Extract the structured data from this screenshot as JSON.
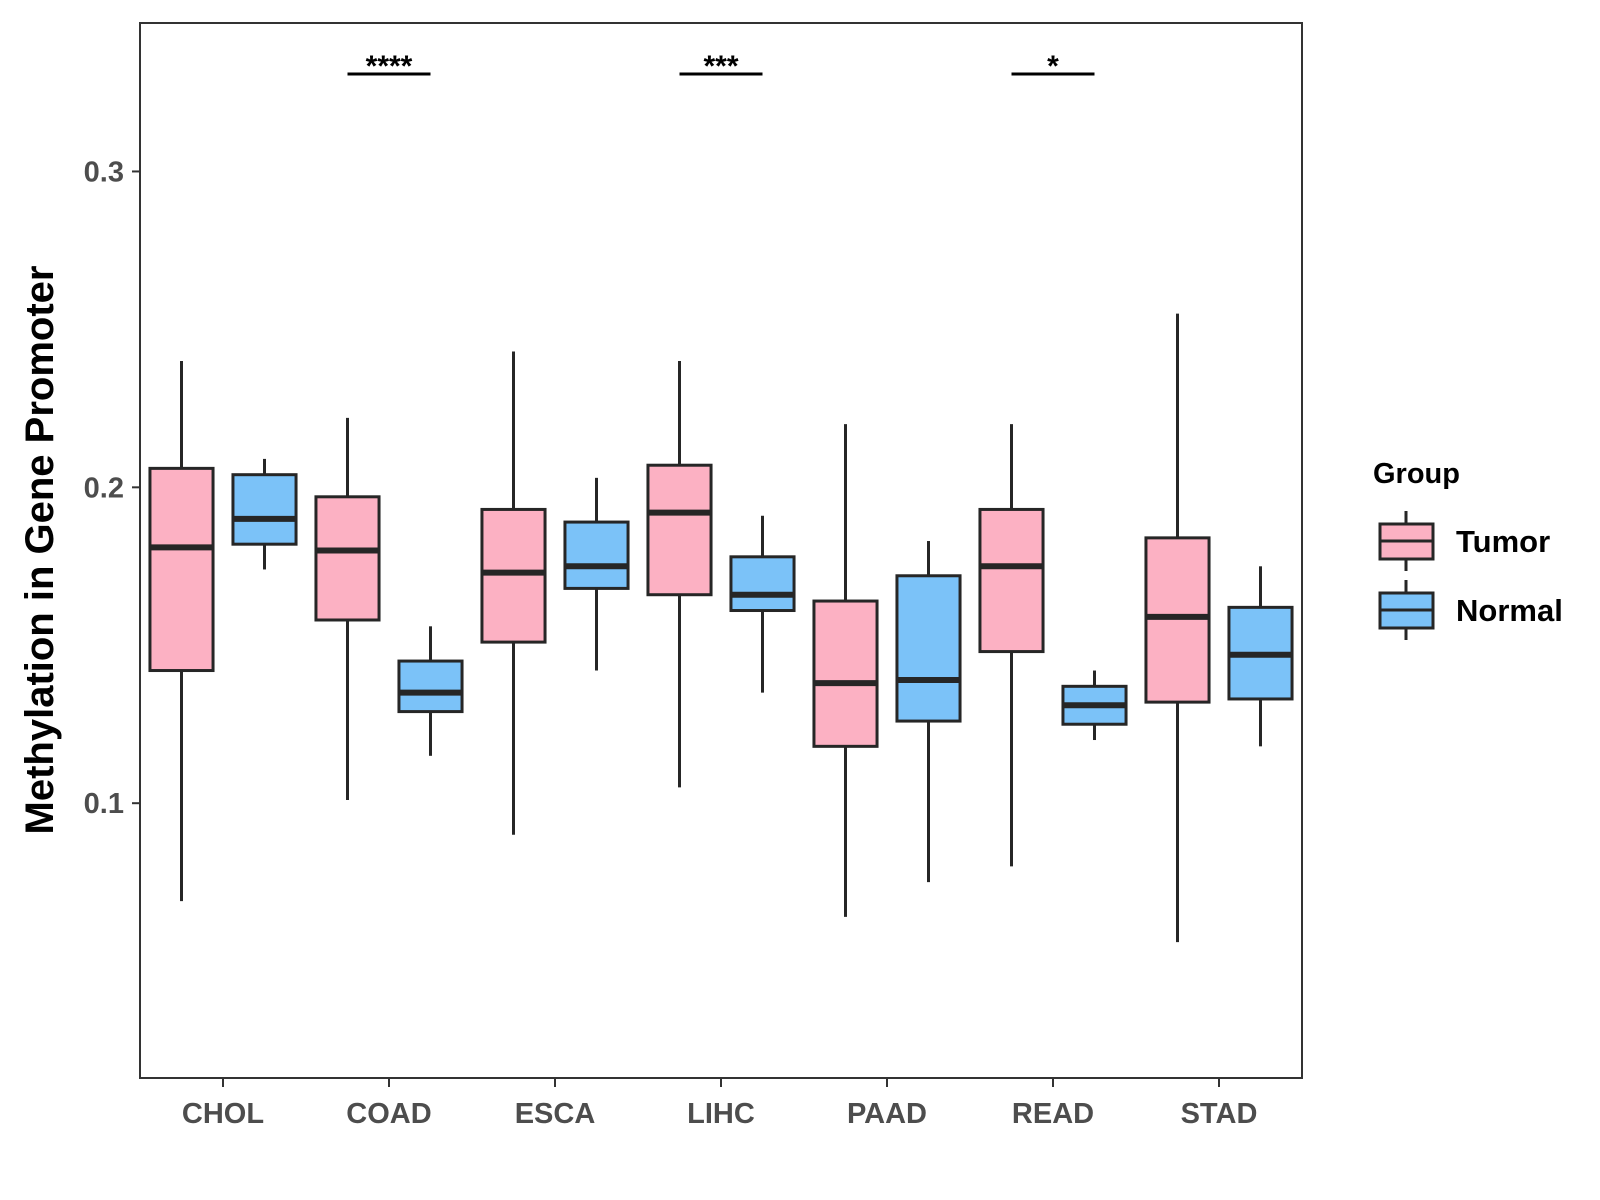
{
  "chart_data": {
    "type": "boxplot",
    "ylabel": "Methylation in Gene Promoter",
    "xlabel": "",
    "yticks": [
      "0.1",
      "0.2",
      "0.3"
    ],
    "ylim": [
      0.013,
      0.347
    ],
    "categories": [
      "CHOL",
      "COAD",
      "ESCA",
      "LIHC",
      "PAAD",
      "READ",
      "STAD"
    ],
    "legend": {
      "title": "Group",
      "position": "right",
      "entries": [
        {
          "name": "Tumor",
          "color": "#fcb1c3"
        },
        {
          "name": "Normal",
          "color": "#7bc2f8"
        }
      ]
    },
    "series": [
      {
        "name": "Tumor",
        "color": "#fcb1c3",
        "boxes": [
          {
            "min": 0.069,
            "q1": 0.142,
            "median": 0.181,
            "q3": 0.206,
            "max": 0.24
          },
          {
            "min": 0.101,
            "q1": 0.158,
            "median": 0.18,
            "q3": 0.197,
            "max": 0.222
          },
          {
            "min": 0.09,
            "q1": 0.151,
            "median": 0.173,
            "q3": 0.193,
            "max": 0.243
          },
          {
            "min": 0.105,
            "q1": 0.166,
            "median": 0.192,
            "q3": 0.207,
            "max": 0.24
          },
          {
            "min": 0.064,
            "q1": 0.118,
            "median": 0.138,
            "q3": 0.164,
            "max": 0.22
          },
          {
            "min": 0.08,
            "q1": 0.148,
            "median": 0.175,
            "q3": 0.193,
            "max": 0.22
          },
          {
            "min": 0.056,
            "q1": 0.132,
            "median": 0.159,
            "q3": 0.184,
            "max": 0.255
          }
        ]
      },
      {
        "name": "Normal",
        "color": "#7bc2f8",
        "boxes": [
          {
            "min": 0.174,
            "q1": 0.182,
            "median": 0.19,
            "q3": 0.204,
            "max": 0.209
          },
          {
            "min": 0.115,
            "q1": 0.129,
            "median": 0.135,
            "q3": 0.145,
            "max": 0.156
          },
          {
            "min": 0.142,
            "q1": 0.168,
            "median": 0.175,
            "q3": 0.189,
            "max": 0.203
          },
          {
            "min": 0.135,
            "q1": 0.161,
            "median": 0.166,
            "q3": 0.178,
            "max": 0.191
          },
          {
            "min": 0.075,
            "q1": 0.126,
            "median": 0.139,
            "q3": 0.172,
            "max": 0.183
          },
          {
            "min": 0.12,
            "q1": 0.125,
            "median": 0.131,
            "q3": 0.137,
            "max": 0.142
          },
          {
            "min": 0.118,
            "q1": 0.133,
            "median": 0.147,
            "q3": 0.162,
            "max": 0.175
          }
        ]
      }
    ],
    "significance": [
      {
        "category": "COAD",
        "label": "****"
      },
      {
        "category": "LIHC",
        "label": "***"
      },
      {
        "category": "READ",
        "label": "*"
      }
    ]
  }
}
